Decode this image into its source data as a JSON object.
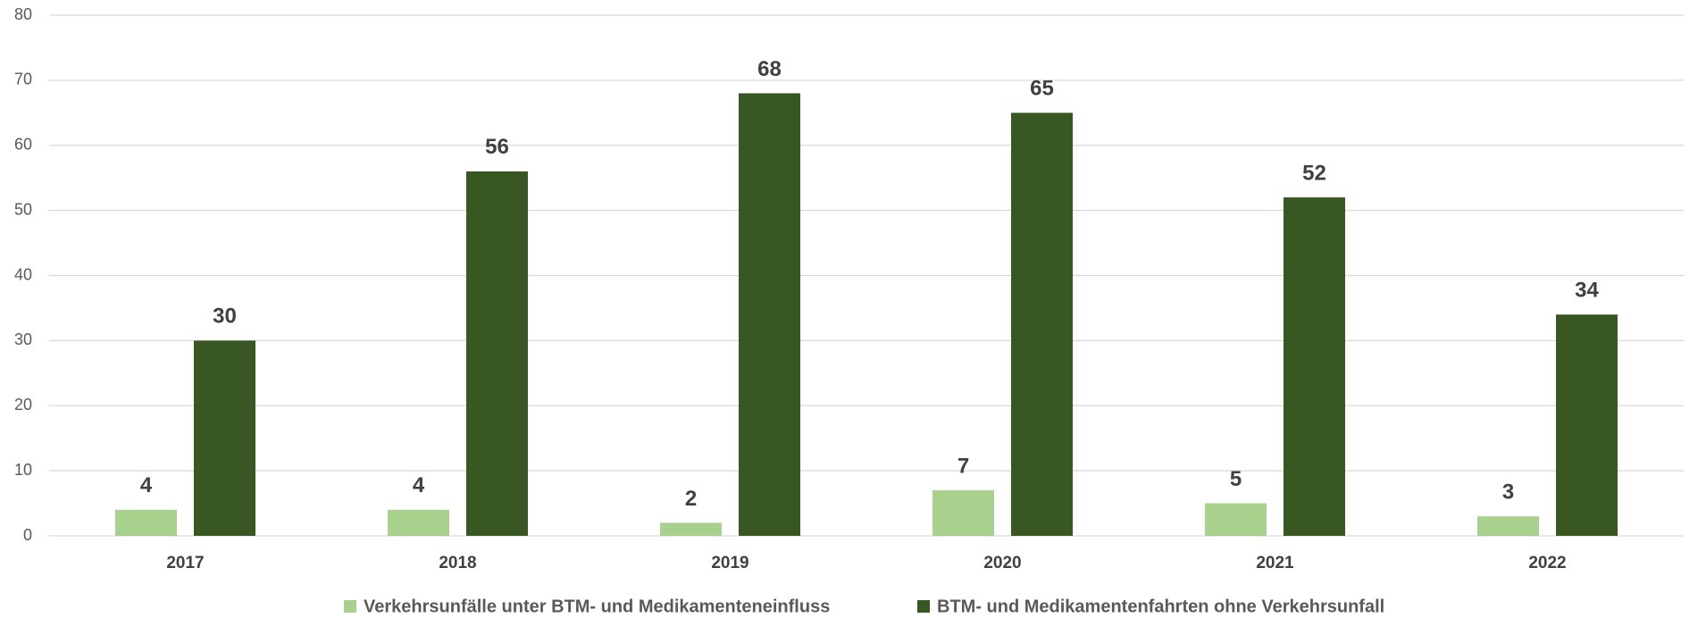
{
  "chart_data": {
    "type": "bar",
    "categories": [
      "2017",
      "2018",
      "2019",
      "2020",
      "2021",
      "2022"
    ],
    "series": [
      {
        "name": "Verkehrsunfälle unter BTM- und Medikamenteneinfluss",
        "color": "#a9d18e",
        "values": [
          4,
          4,
          2,
          7,
          5,
          3
        ]
      },
      {
        "name": "BTM- und Medikamentenfahrten ohne Verkehrsunfall",
        "color": "#385723",
        "values": [
          30,
          56,
          68,
          65,
          52,
          34
        ]
      }
    ],
    "ylim": [
      0,
      80
    ],
    "yticks": [
      0,
      10,
      20,
      30,
      40,
      50,
      60,
      70,
      80
    ],
    "grid": true,
    "legend": "bottom"
  }
}
